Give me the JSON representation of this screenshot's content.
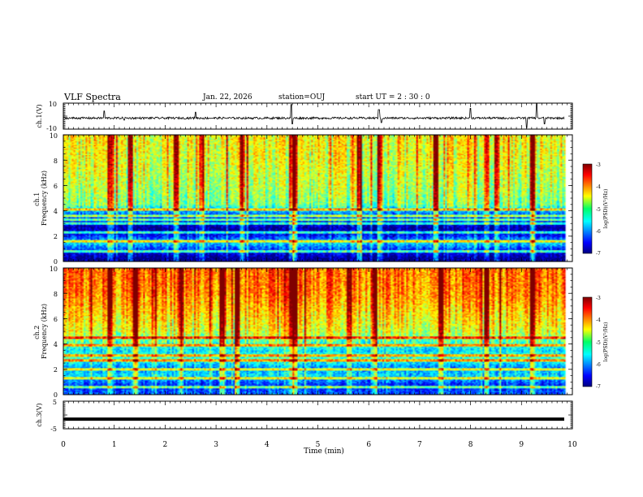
{
  "header": {
    "title": "VLF Spectra",
    "date": "Jan. 22, 2026",
    "station": "station=OUJ",
    "start_ut": "start UT =  2 : 30 : 0"
  },
  "chart_data": [
    {
      "id": "ch1-waveform",
      "type": "line",
      "ylabel": "ch.1(V)",
      "ylim": [
        -10,
        10
      ],
      "ytick_labels": [
        "10",
        "-10"
      ],
      "baseline": -1.5,
      "spikes": [
        {
          "x": 0.8,
          "y": 4
        },
        {
          "x": 1.2,
          "y": -3
        },
        {
          "x": 2.6,
          "y": 3
        },
        {
          "x": 4.48,
          "y": 9
        },
        {
          "x": 4.5,
          "y": -6
        },
        {
          "x": 6.2,
          "y": 5
        },
        {
          "x": 6.25,
          "y": -5
        },
        {
          "x": 8.0,
          "y": 6
        },
        {
          "x": 9.1,
          "y": -9
        },
        {
          "x": 9.3,
          "y": 9.5
        },
        {
          "x": 9.45,
          "y": -6
        }
      ]
    },
    {
      "id": "ch1-spectrogram",
      "type": "heatmap",
      "ylabel": "ch.1\nFrequency (kHz)",
      "ylim": [
        0,
        10
      ],
      "ytick_labels": [
        "10",
        "8",
        "6",
        "4",
        "2",
        "0"
      ],
      "colorbar": {
        "label": "log(PSD)(V²/Hz)",
        "range": [
          -7,
          -3
        ],
        "tick_labels": [
          "-3",
          "-4",
          "-5",
          "-6",
          "-7"
        ]
      },
      "profile_log_psd_by_freq_khz": [
        [
          0.2,
          -7.0
        ],
        [
          0.8,
          -6.5
        ],
        [
          1.5,
          -5.6
        ],
        [
          2.0,
          -6.4
        ],
        [
          2.6,
          -6.9
        ],
        [
          3.4,
          -6.3
        ],
        [
          3.9,
          -5.9
        ],
        [
          4.5,
          -5.0
        ],
        [
          6.0,
          -4.8
        ],
        [
          8.0,
          -4.6
        ],
        [
          10.0,
          -4.5
        ]
      ],
      "lines_khz": [
        0.8,
        1.6,
        2.3,
        3.0,
        3.3,
        3.6,
        4.1
      ],
      "burst_times_min": [
        0.9,
        1.3,
        2.2,
        2.7,
        3.5,
        4.47,
        4.52,
        5.8,
        6.2,
        7.3,
        8.5,
        9.2
      ]
    },
    {
      "id": "ch2-spectrogram",
      "type": "heatmap",
      "ylabel": "ch.2\nFrequency (kHz)",
      "ylim": [
        0,
        10
      ],
      "ytick_labels": [
        "10",
        "8",
        "6",
        "4",
        "2",
        "0"
      ],
      "colorbar": {
        "label": "log(PSD)(V²/Hz)",
        "range": [
          -7,
          -3
        ],
        "tick_labels": [
          "-3",
          "-4",
          "-5",
          "-6",
          "-7"
        ]
      },
      "profile_log_psd_by_freq_khz": [
        [
          0.2,
          -6.2
        ],
        [
          0.8,
          -6.3
        ],
        [
          1.5,
          -5.6
        ],
        [
          2.2,
          -5.9
        ],
        [
          2.8,
          -5.2
        ],
        [
          3.5,
          -5.6
        ],
        [
          4.2,
          -5.1
        ],
        [
          5.0,
          -4.6
        ],
        [
          6.5,
          -4.3
        ],
        [
          8.0,
          -4.0
        ],
        [
          10.0,
          -3.9
        ]
      ],
      "lines_khz": [
        0.6,
        1.3,
        2.0,
        2.7,
        3.1,
        3.9,
        4.5
      ],
      "burst_times_min": [
        0.9,
        1.4,
        2.3,
        3.1,
        3.4,
        4.47,
        4.52,
        5.6,
        6.1,
        7.4,
        8.3,
        9.2
      ]
    },
    {
      "id": "ch3-waveform",
      "type": "line",
      "ylabel": "ch.3(V)",
      "ylim": [
        -5,
        5
      ],
      "ytick_labels": [
        "5",
        "-5"
      ],
      "baseline": -1.5
    }
  ],
  "xaxis": {
    "label": "Time (min)",
    "range": [
      0,
      10
    ],
    "tick_labels": [
      "0",
      "1",
      "2",
      "3",
      "4",
      "5",
      "6",
      "7",
      "8",
      "9",
      "10"
    ],
    "data_end_min": 9.84
  }
}
